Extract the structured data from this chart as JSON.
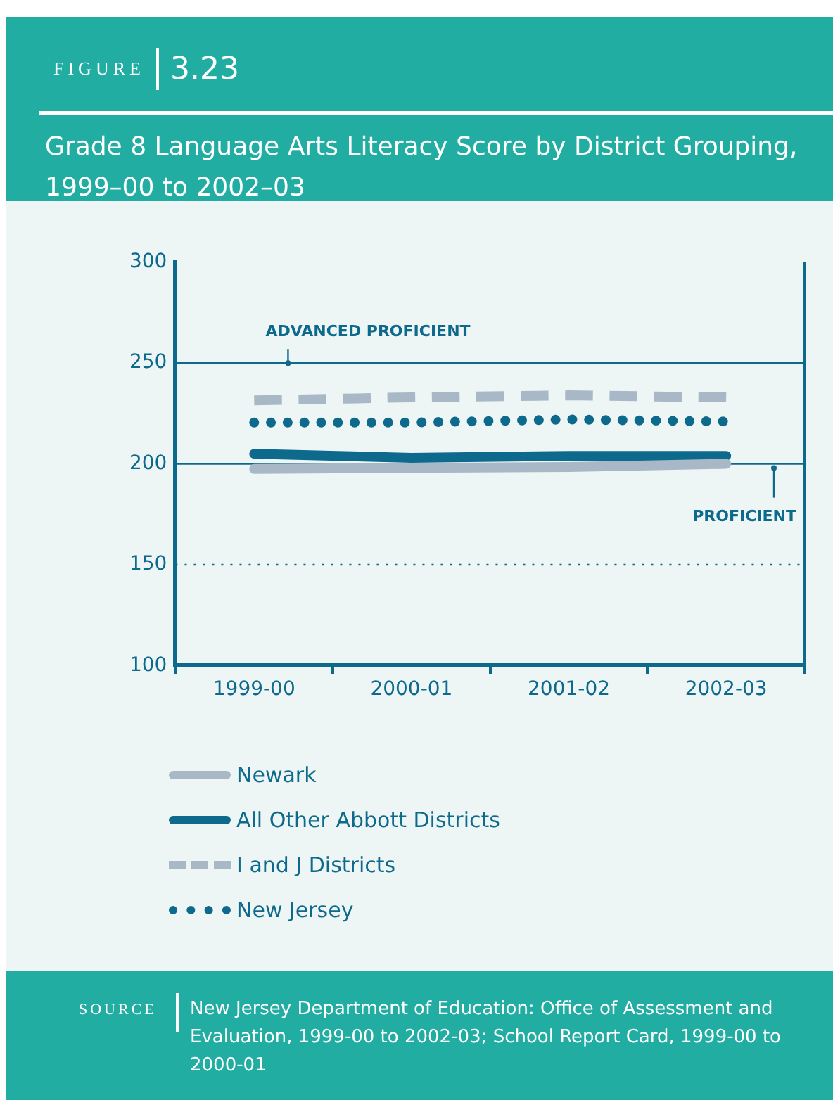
{
  "chart_data": {
    "type": "line",
    "title": "Grade 8 Language Arts Literacy Score by District Grouping, 1999–00 to 2002–03",
    "annotations": [
      "FIGURE",
      "3.23",
      "SOURCE",
      "New Jersey Department of Education: Office of Assessment and Evaluation, 1999-00 to 2002-03; School Report Card, 1999-00 to 2000-01"
    ],
    "categories": [
      "1999-00",
      "2000-01",
      "2001-02",
      "2002-03"
    ],
    "series": [
      {
        "name": "Newark",
        "color": "#a9b8c6",
        "line_style": "solid",
        "values": [
          197.5,
          198,
          198.5,
          200
        ]
      },
      {
        "name": "All Other Abbott Districts",
        "color": "#0e6a8c",
        "line_style": "solid",
        "values": [
          205,
          203,
          204,
          204
        ]
      },
      {
        "name": "I and J Districts",
        "color": "#a9b8c6",
        "line_style": "dashed",
        "values": [
          231.5,
          233,
          234,
          233
        ]
      },
      {
        "name": "New Jersey",
        "color": "#0e6a8c",
        "line_style": "dotted",
        "values": [
          220.5,
          220.5,
          222,
          221
        ]
      }
    ],
    "ylim": [
      100,
      300
    ],
    "yticks": [
      100,
      150,
      200,
      250,
      300
    ],
    "ref_lines": [
      {
        "axis": "y",
        "value": 250,
        "label": "ADVANCED PROFICIENT",
        "color": "#0e6a8c",
        "line_style": "solid"
      },
      {
        "axis": "y",
        "value": 200,
        "label": "PROFICIENT",
        "color": "#0e6a8c",
        "line_style": "solid"
      },
      {
        "axis": "y",
        "value": 150,
        "label": null,
        "color": "#0e6a8c",
        "line_style": "dotted"
      }
    ],
    "grid": false,
    "legend": "bottom",
    "marker": "none"
  }
}
